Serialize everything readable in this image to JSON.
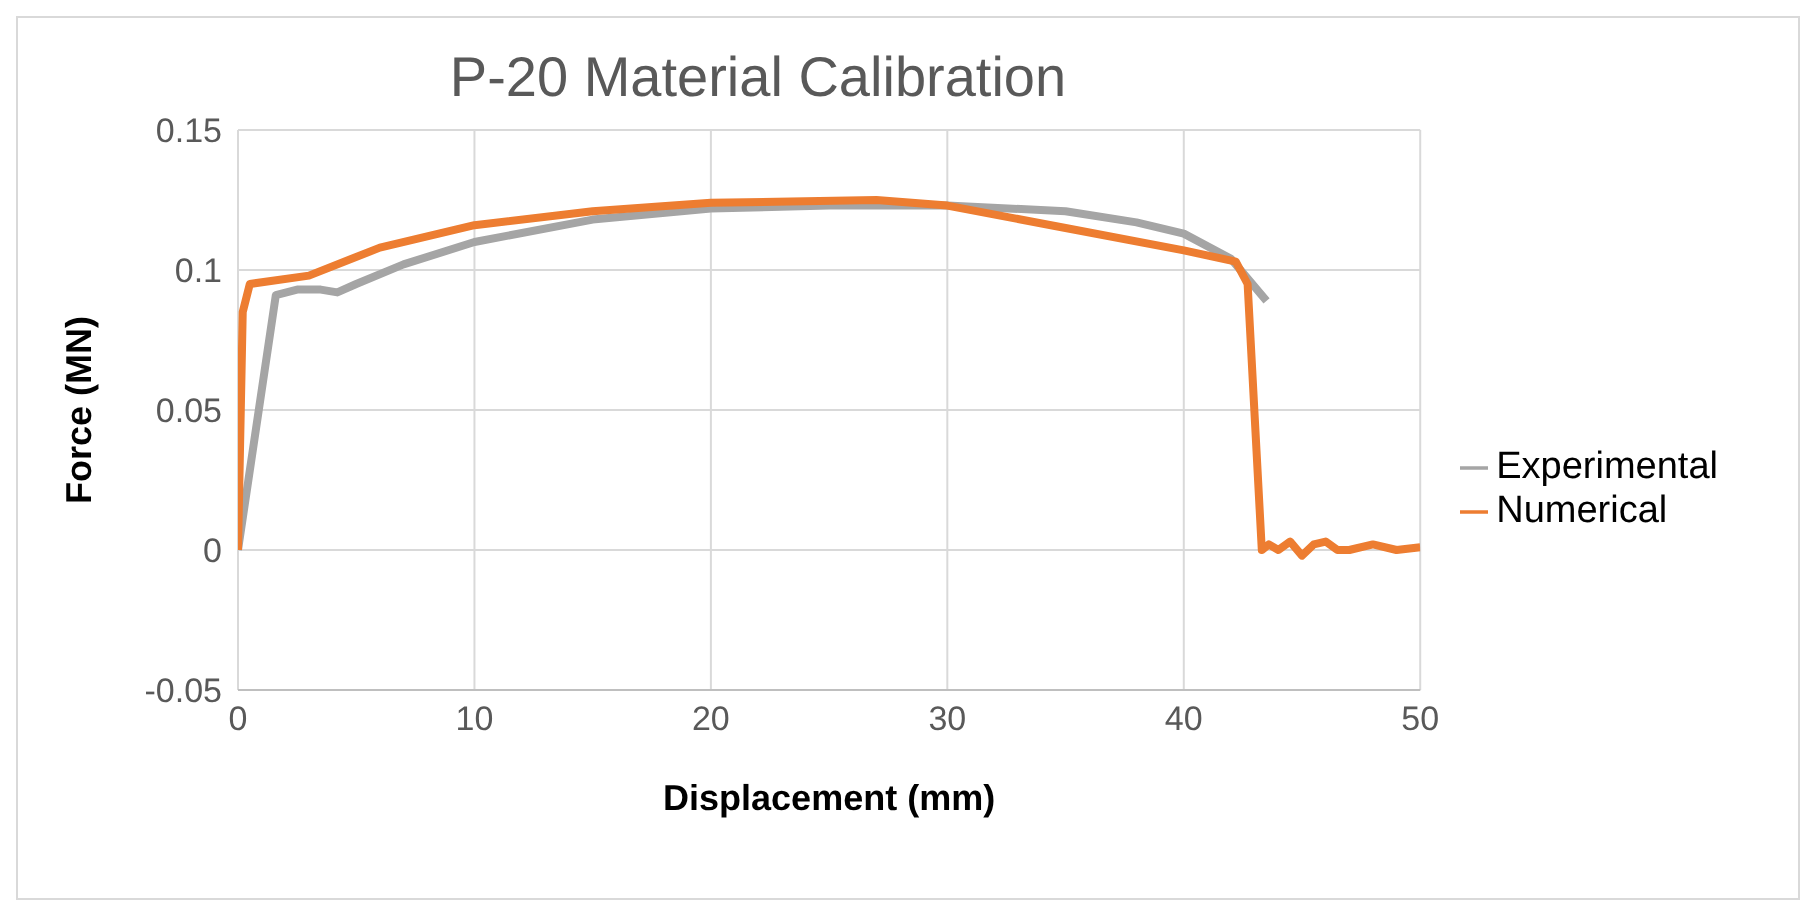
{
  "chart_data": {
    "type": "line",
    "title": "P-20 Material Calibration",
    "xlabel": "Displacement (mm)",
    "ylabel": "Force (MN)",
    "xlim": [
      0,
      50
    ],
    "xticks": [
      0,
      10,
      20,
      30,
      40,
      50
    ],
    "ylim": [
      -0.05,
      0.15
    ],
    "yticks": [
      -0.05,
      0,
      0.05,
      0.1,
      0.15
    ],
    "grid": true,
    "legend": "right",
    "marker": "none",
    "line_style": "solid",
    "series": [
      {
        "name": "Experimental",
        "color": "#a5a5a5",
        "x": [
          0,
          1.6,
          2.5,
          3.5,
          4.2,
          5,
          7,
          10,
          15,
          20,
          25,
          30,
          35,
          38,
          40,
          42,
          43.5
        ],
        "values": [
          0,
          0.091,
          0.093,
          0.093,
          0.092,
          0.095,
          0.102,
          0.11,
          0.118,
          0.122,
          0.123,
          0.123,
          0.121,
          0.117,
          0.113,
          0.104,
          0.089
        ]
      },
      {
        "name": "Numerical",
        "color": "#ed7d31",
        "x": [
          0,
          0.2,
          0.5,
          3,
          6,
          10,
          15,
          20,
          27,
          30,
          35,
          40,
          42.2,
          42.7,
          43.3,
          43.6,
          44,
          44.5,
          45,
          45.5,
          46,
          46.5,
          47,
          48,
          49,
          50
        ],
        "values": [
          0,
          0.085,
          0.095,
          0.098,
          0.108,
          0.116,
          0.121,
          0.124,
          0.125,
          0.123,
          0.115,
          0.107,
          0.103,
          0.095,
          0,
          0.002,
          0,
          0.003,
          -0.002,
          0.002,
          0.003,
          0,
          0,
          0.002,
          0,
          0.001
        ]
      }
    ]
  }
}
